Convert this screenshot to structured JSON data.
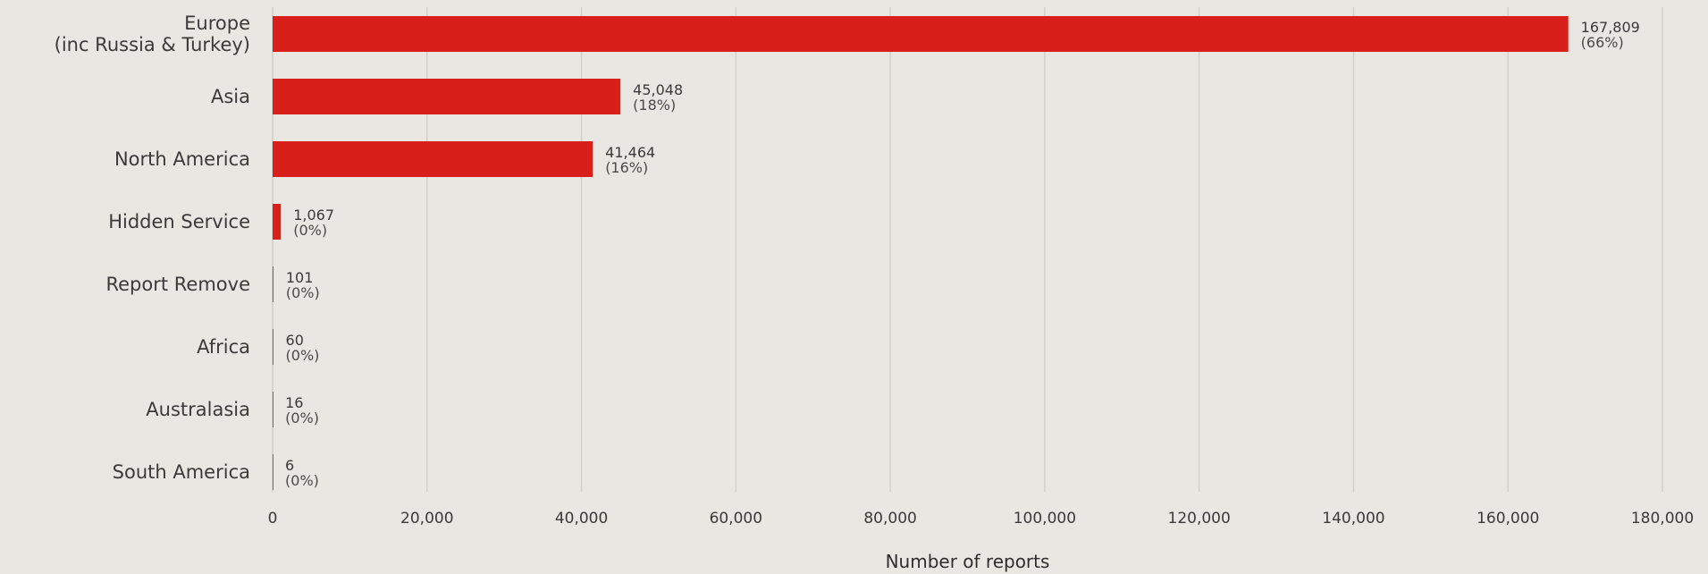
{
  "chart_data": {
    "type": "bar",
    "orientation": "horizontal",
    "categories": [
      [
        "Europe",
        "(inc Russia & Turkey)"
      ],
      [
        "Asia"
      ],
      [
        "North America"
      ],
      [
        "Hidden Service"
      ],
      [
        "Report Remove"
      ],
      [
        "Africa"
      ],
      [
        "Australasia"
      ],
      [
        "South America"
      ]
    ],
    "values": [
      167809,
      45048,
      41464,
      1067,
      101,
      60,
      16,
      6
    ],
    "value_labels": [
      "167,809",
      "45,048",
      "41,464",
      "1,067",
      "101",
      "60",
      "16",
      "6"
    ],
    "percent_labels": [
      "(66%)",
      "(18%)",
      "(16%)",
      "(0%)",
      "(0%)",
      "(0%)",
      "(0%)",
      "(0%)"
    ],
    "xlabel": "Number of reports",
    "ylabel": "",
    "title": "",
    "xlim": [
      0,
      180000
    ],
    "xticks": [
      0,
      20000,
      40000,
      60000,
      80000,
      100000,
      120000,
      140000,
      160000,
      180000
    ],
    "xtick_labels": [
      "0",
      "20,000",
      "40,000",
      "60,000",
      "80,000",
      "100,000",
      "120,000",
      "140,000",
      "160,000",
      "180,000"
    ],
    "grid": "vertical",
    "legend": "none",
    "bar_color": "#d91f1a",
    "background_color": "#e9e7e1"
  }
}
